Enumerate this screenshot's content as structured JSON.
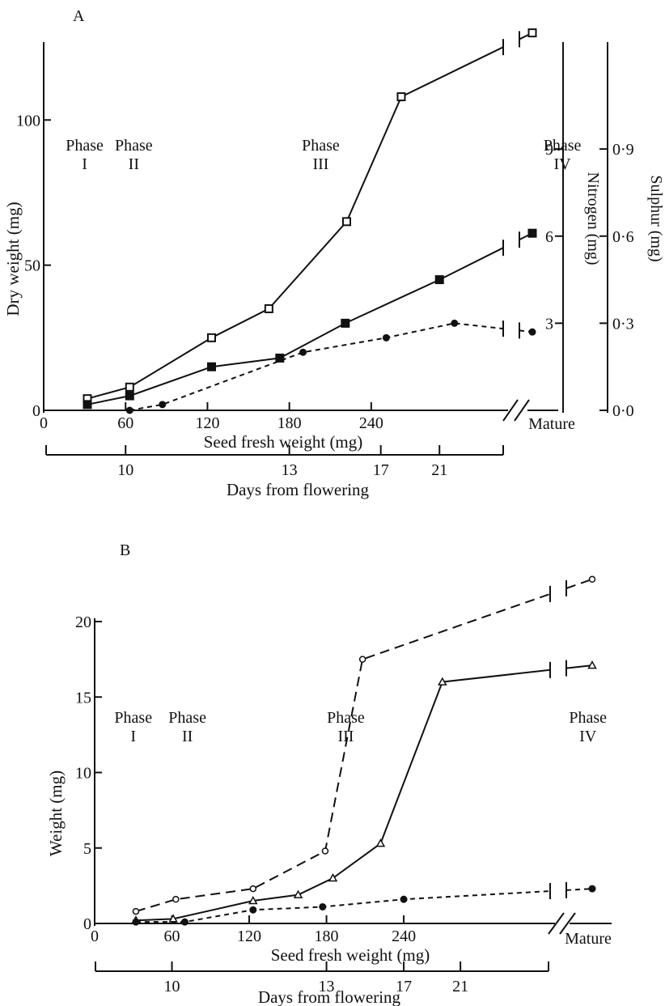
{
  "chart_data": [
    {
      "panel_label": "A",
      "type": "line",
      "xlabel": "Seed fresh weight (mg)",
      "x_ticks": [
        "0",
        "60",
        "120",
        "180",
        "240"
      ],
      "x_break_label": "Mature",
      "xlim": [
        0,
        300
      ],
      "x2_label": "Days from flowering",
      "x2_ticks": [
        {
          "label": "10",
          "at_fresh_weight": 60
        },
        {
          "label": "13",
          "at_fresh_weight": 180
        },
        {
          "label": "17",
          "at_fresh_weight": 247
        },
        {
          "label": "21",
          "at_fresh_weight": 290
        }
      ],
      "ylabel": "Dry weight (mg)",
      "y_ticks": [
        "0",
        "50",
        "100"
      ],
      "ylim": [
        0,
        120
      ],
      "y2_label": "Nitrogen (mg)",
      "y2_ticks": [
        "3",
        "6",
        "9"
      ],
      "y2lim": [
        0,
        12
      ],
      "y3_label": "Sulphur (mg)",
      "y3_ticks": [
        "0·0",
        "0·3",
        "0·6",
        "0·9"
      ],
      "y3lim": [
        0,
        1.2
      ],
      "phases": [
        {
          "name": "Phase",
          "numeral": "I",
          "at": 30
        },
        {
          "name": "Phase",
          "numeral": "II",
          "at": 66
        },
        {
          "name": "Phase",
          "numeral": "III",
          "at": 203
        },
        {
          "name": "Phase",
          "numeral": "IV",
          "at": 380
        }
      ],
      "series": [
        {
          "marker": "open-square",
          "style": "solid",
          "axis": "left",
          "x": [
            32,
            63,
            123,
            165,
            222,
            262
          ],
          "y": [
            4,
            8,
            25,
            35,
            65,
            108
          ],
          "mature_y": 130
        },
        {
          "marker": "filled-square",
          "style": "solid",
          "axis": "nitrogen",
          "x": [
            32,
            63,
            123,
            173,
            221,
            290
          ],
          "y": [
            0.2,
            0.5,
            1.5,
            1.8,
            3.0,
            4.5
          ],
          "mature_y": 6.1
        },
        {
          "marker": "filled-circle",
          "style": "dashed",
          "axis": "sulphur",
          "x": [
            63,
            87,
            190,
            251,
            301
          ],
          "y": [
            0.0,
            0.02,
            0.2,
            0.25,
            0.3
          ],
          "mature_y": 0.27
        }
      ]
    },
    {
      "panel_label": "B",
      "type": "line",
      "xlabel": "Seed fresh weight (mg)",
      "x_ticks": [
        "0",
        "60",
        "120",
        "180",
        "240"
      ],
      "x_break_label": "Mature",
      "xlim": [
        0,
        300
      ],
      "x2_label": "Days from flowering",
      "x2_ticks": [
        {
          "label": "10",
          "at_fresh_weight": 60
        },
        {
          "label": "13",
          "at_fresh_weight": 180
        },
        {
          "label": "17",
          "at_fresh_weight": 240
        },
        {
          "label": "21",
          "at_fresh_weight": 284
        }
      ],
      "ylabel": "Weight (mg)",
      "y_ticks": [
        "0",
        "5",
        "10",
        "15",
        "20"
      ],
      "ylim": [
        0,
        20
      ],
      "phases": [
        {
          "name": "Phase",
          "numeral": "I",
          "at": 30
        },
        {
          "name": "Phase",
          "numeral": "II",
          "at": 72
        },
        {
          "name": "Phase",
          "numeral": "III",
          "at": 195
        },
        {
          "name": "Phase",
          "numeral": "IV",
          "at": 383
        }
      ],
      "series": [
        {
          "marker": "open-circle",
          "style": "dashed",
          "x": [
            32,
            63,
            123,
            179,
            208
          ],
          "y": [
            0.8,
            1.6,
            2.3,
            4.8,
            17.5
          ],
          "mature_y": 22.8
        },
        {
          "marker": "open-triangle",
          "style": "solid",
          "x": [
            32,
            61,
            123,
            158,
            185,
            222,
            270
          ],
          "y": [
            0.2,
            0.3,
            1.5,
            1.9,
            3.0,
            5.3,
            16
          ],
          "mature_y": 17.1
        },
        {
          "marker": "filled-circle",
          "style": "dashed",
          "x": [
            32,
            70,
            123,
            177,
            240
          ],
          "y": [
            0.1,
            0.1,
            0.9,
            1.1,
            1.6
          ],
          "mature_y": 2.3
        }
      ]
    }
  ]
}
